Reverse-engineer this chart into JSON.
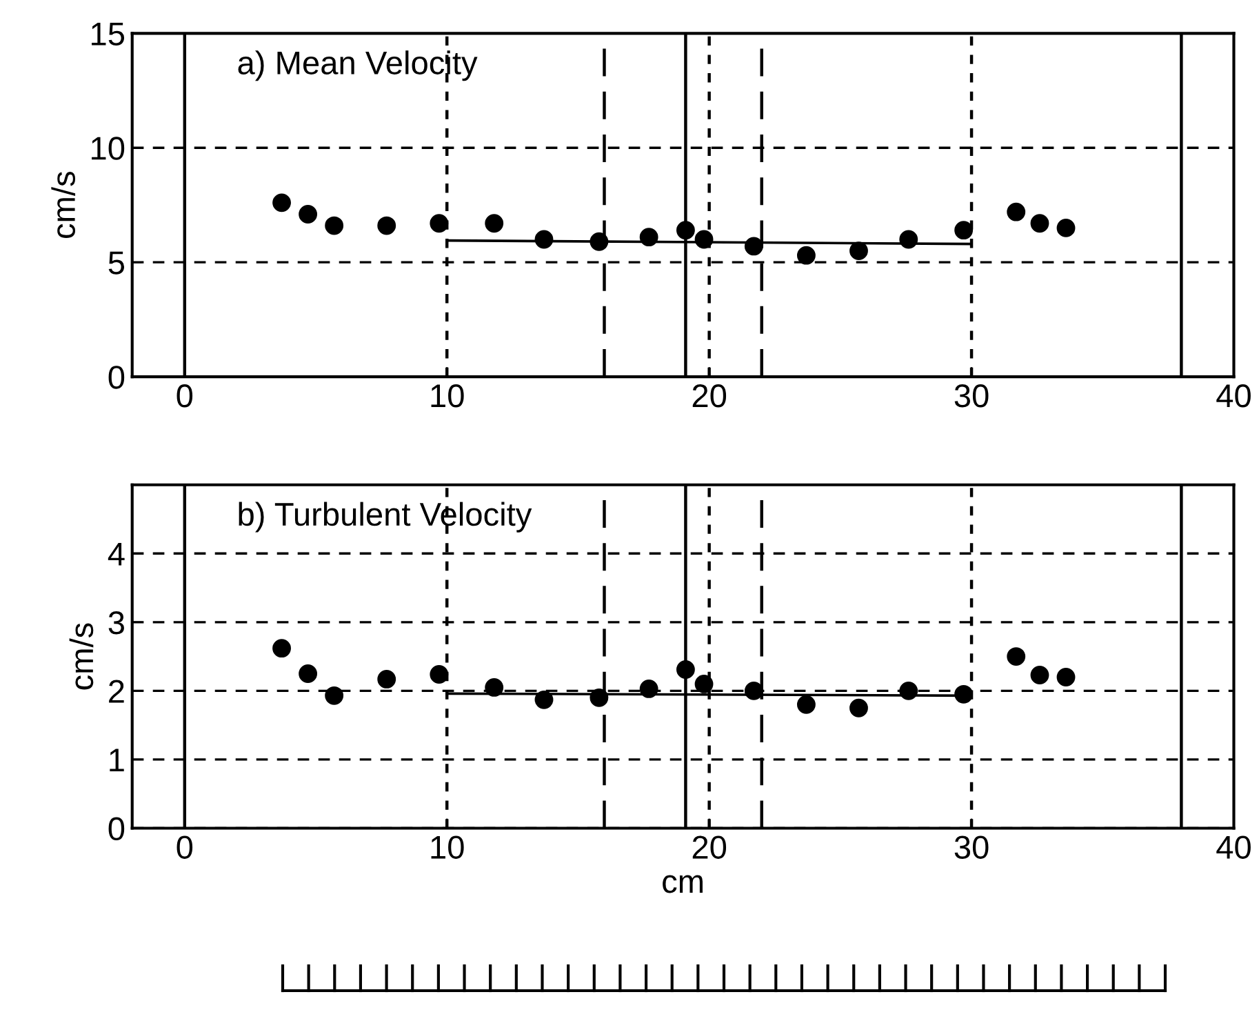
{
  "chart_data": [
    {
      "type": "scatter",
      "title": "a) Mean Velocity",
      "ylabel": "cm/s",
      "xlim": [
        -2,
        40
      ],
      "xticks": [
        0,
        10,
        20,
        30,
        40
      ],
      "ylim": [
        0,
        15
      ],
      "yticks": [
        0,
        5,
        10,
        15
      ],
      "grid": "y",
      "series": [
        {
          "marker": "circle",
          "color": "#000000",
          "x": [
            3.7,
            4.7,
            5.7,
            7.7,
            9.7,
            11.8,
            13.7,
            15.8,
            17.7,
            19.1,
            19.8,
            21.7,
            23.7,
            25.7,
            27.6,
            29.7,
            31.7,
            32.6,
            33.6
          ],
          "values": [
            7.6,
            7.1,
            6.6,
            6.6,
            6.7,
            6.7,
            6.0,
            5.9,
            6.1,
            6.4,
            6.0,
            5.7,
            5.3,
            5.5,
            6.0,
            6.4,
            7.2,
            6.7,
            6.5
          ]
        },
        {
          "type": "line",
          "color": "#000000",
          "x": [
            10,
            30
          ],
          "values": [
            5.95,
            5.8
          ]
        }
      ],
      "ref_lines": [
        {
          "axis": "x",
          "value": 0,
          "line_style": "solid"
        },
        {
          "axis": "x",
          "value": 19.1,
          "line_style": "solid"
        },
        {
          "axis": "x",
          "value": 38,
          "line_style": "solid"
        },
        {
          "axis": "x",
          "value": 16,
          "line_style": "dashed"
        },
        {
          "axis": "x",
          "value": 22,
          "line_style": "dashed"
        },
        {
          "axis": "x",
          "value": 10,
          "line_style": "dotted"
        },
        {
          "axis": "x",
          "value": 20,
          "line_style": "dotted"
        },
        {
          "axis": "x",
          "value": 30,
          "line_style": "dotted"
        }
      ]
    },
    {
      "type": "scatter",
      "title": "b) Turbulent Velocity",
      "xlabel": "cm",
      "ylabel": "cm/s",
      "xlim": [
        -2,
        40
      ],
      "xticks": [
        0,
        10,
        20,
        30,
        40
      ],
      "ylim": [
        0,
        5
      ],
      "yticks": [
        0,
        1,
        2,
        3,
        4
      ],
      "grid": "y",
      "series": [
        {
          "marker": "circle",
          "color": "#000000",
          "x": [
            3.7,
            4.7,
            5.7,
            7.7,
            9.7,
            11.8,
            13.7,
            15.8,
            17.7,
            19.1,
            19.8,
            21.7,
            23.7,
            25.7,
            27.6,
            29.7,
            31.7,
            32.6,
            33.6
          ],
          "values": [
            2.62,
            2.25,
            1.93,
            2.17,
            2.24,
            2.05,
            1.87,
            1.9,
            2.03,
            2.31,
            2.1,
            2.0,
            1.8,
            1.75,
            2.0,
            1.95,
            2.5,
            2.23,
            2.2
          ]
        },
        {
          "type": "line",
          "color": "#000000",
          "x": [
            10,
            30
          ],
          "values": [
            1.96,
            1.93
          ]
        }
      ],
      "ref_lines": [
        {
          "axis": "x",
          "value": 0,
          "line_style": "solid"
        },
        {
          "axis": "x",
          "value": 19.1,
          "line_style": "solid"
        },
        {
          "axis": "x",
          "value": 38,
          "line_style": "solid"
        },
        {
          "axis": "x",
          "value": 16,
          "line_style": "dashed"
        },
        {
          "axis": "x",
          "value": 22,
          "line_style": "dashed"
        },
        {
          "axis": "x",
          "value": 10,
          "line_style": "dotted"
        },
        {
          "axis": "x",
          "value": 20,
          "line_style": "dotted"
        },
        {
          "axis": "x",
          "value": 30,
          "line_style": "dotted"
        }
      ]
    }
  ]
}
